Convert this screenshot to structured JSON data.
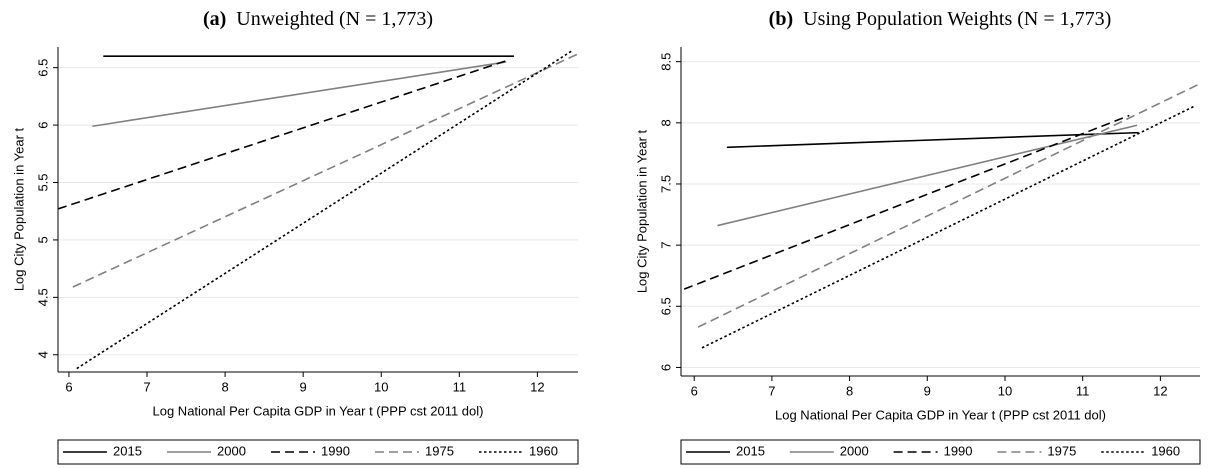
{
  "chart_data": [
    {
      "type": "line",
      "label": "(a)",
      "title": "Unweighted (N = 1,773)",
      "xlabel": "Log National Per Capita GDP in Year t (PPP cst 2011 dol)",
      "ylabel": "Log City Population in Year t",
      "xlim": [
        5.86,
        12.52
      ],
      "ylim": [
        3.85,
        6.68
      ],
      "xticks": [
        6,
        7,
        8,
        9,
        10,
        11,
        12
      ],
      "yticks": [
        4,
        4.5,
        5,
        5.5,
        6,
        6.5
      ],
      "grid": true,
      "legend": "bottom",
      "series": [
        {
          "name": "2015",
          "color": "#000000",
          "dash": "solid",
          "x": [
            6.44,
            11.7
          ],
          "values": [
            6.6,
            6.6
          ]
        },
        {
          "name": "2000",
          "color": "#808080",
          "dash": "solid",
          "x": [
            6.3,
            11.6
          ],
          "values": [
            5.99,
            6.55
          ]
        },
        {
          "name": "1990",
          "color": "#000000",
          "dash": "dashed",
          "x": [
            5.86,
            11.6
          ],
          "values": [
            5.27,
            6.56
          ]
        },
        {
          "name": "1975",
          "color": "#808080",
          "dash": "dashed",
          "x": [
            6.05,
            12.52
          ],
          "values": [
            4.59,
            6.62
          ]
        },
        {
          "name": "1960",
          "color": "#000000",
          "dash": "dotted",
          "x": [
            6.1,
            12.45
          ],
          "values": [
            3.88,
            6.65
          ]
        }
      ]
    },
    {
      "type": "line",
      "label": "(b)",
      "title": "Using Population Weights (N = 1,773)",
      "xlabel": "Log National Per Capita GDP in Year t (PPP cst 2011 dol)",
      "ylabel": "Log City Population in Year t",
      "xlim": [
        5.83,
        12.51
      ],
      "ylim": [
        5.93,
        8.62
      ],
      "xticks": [
        6,
        7,
        8,
        9,
        10,
        11,
        12
      ],
      "yticks": [
        6,
        6.5,
        7,
        7.5,
        8,
        8.5
      ],
      "grid": true,
      "legend": "bottom",
      "series": [
        {
          "name": "2015",
          "color": "#000000",
          "dash": "solid",
          "x": [
            6.42,
            11.72
          ],
          "values": [
            7.8,
            7.92
          ]
        },
        {
          "name": "2000",
          "color": "#808080",
          "dash": "solid",
          "x": [
            6.3,
            11.7
          ],
          "values": [
            7.16,
            7.98
          ]
        },
        {
          "name": "1990",
          "color": "#000000",
          "dash": "dashed",
          "x": [
            5.87,
            11.6
          ],
          "values": [
            6.64,
            8.06
          ]
        },
        {
          "name": "1975",
          "color": "#808080",
          "dash": "dashed",
          "x": [
            6.05,
            12.51
          ],
          "values": [
            6.33,
            8.32
          ]
        },
        {
          "name": "1960",
          "color": "#000000",
          "dash": "dotted",
          "x": [
            6.1,
            12.45
          ],
          "values": [
            6.16,
            8.14
          ]
        }
      ]
    }
  ]
}
